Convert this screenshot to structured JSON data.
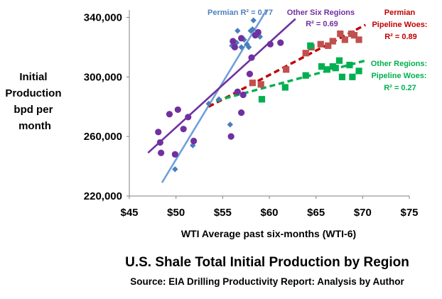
{
  "chart_data": {
    "type": "scatter",
    "title": "U.S. Shale Total Initial Production by Region",
    "subtitle": "Source: EIA Drilling Productivity Report: Analysis by Author",
    "xlabel": "WTI Average past six-months (WTI-6)",
    "ylabel_lines": [
      "Initial",
      "Production",
      "bpd per",
      "month"
    ],
    "xlim": [
      45,
      75
    ],
    "ylim": [
      220000,
      345000
    ],
    "x_ticks": [
      45,
      50,
      55,
      60,
      65,
      70,
      75
    ],
    "x_tick_labels": [
      "$45",
      "$50",
      "$55",
      "$60",
      "$65",
      "$70",
      "$75"
    ],
    "y_ticks": [
      220000,
      260000,
      300000,
      340000
    ],
    "y_tick_labels": [
      "220,000",
      "260,000",
      "300,000",
      "340,000"
    ],
    "grid": false,
    "series": [
      {
        "name": "Permian",
        "marker": "diamond",
        "color": "#4a7ebb",
        "points": [
          [
            49.9,
            238000
          ],
          [
            51.8,
            254000
          ],
          [
            53.5,
            282000
          ],
          [
            54.6,
            285000
          ],
          [
            55.8,
            268000
          ],
          [
            56.0,
            321000
          ],
          [
            56.5,
            323000
          ],
          [
            56.6,
            331000
          ],
          [
            57.0,
            320000
          ],
          [
            57.3,
            325000
          ],
          [
            57.6,
            322000
          ],
          [
            57.8,
            320000
          ],
          [
            58.0,
            331000
          ],
          [
            58.2,
            332000
          ],
          [
            58.3,
            338000
          ],
          [
            58.7,
            329000
          ],
          [
            59.0,
            327000
          ]
        ]
      },
      {
        "name": "Other Six Regions",
        "marker": "circle",
        "color": "#7030a0",
        "points": [
          [
            48.1,
            263000
          ],
          [
            48.3,
            256000
          ],
          [
            48.4,
            249000
          ],
          [
            49.3,
            275000
          ],
          [
            49.9,
            248000
          ],
          [
            50.2,
            278000
          ],
          [
            50.8,
            265000
          ],
          [
            51.3,
            273000
          ],
          [
            51.9,
            257000
          ],
          [
            55.9,
            260000
          ],
          [
            56.1,
            324000
          ],
          [
            56.3,
            320000
          ],
          [
            56.6,
            290000
          ],
          [
            57.0,
            276000
          ],
          [
            57.0,
            326000
          ],
          [
            57.2,
            288000
          ],
          [
            57.9,
            302000
          ],
          [
            58.1,
            313000
          ],
          [
            58.5,
            328000
          ],
          [
            58.8,
            330000
          ],
          [
            60.1,
            322000
          ],
          [
            61.2,
            323000
          ]
        ]
      },
      {
        "name": "Permian Pipeline Woes",
        "marker": "square",
        "color": "#c0504d",
        "points": [
          [
            58.2,
            296000
          ],
          [
            59.1,
            295000
          ],
          [
            61.8,
            305000
          ],
          [
            63.9,
            316000
          ],
          [
            64.5,
            320000
          ],
          [
            65.5,
            322000
          ],
          [
            66.3,
            321000
          ],
          [
            66.8,
            324000
          ],
          [
            67.6,
            329000
          ],
          [
            68.1,
            325000
          ],
          [
            68.8,
            329000
          ],
          [
            69.1,
            328000
          ],
          [
            69.6,
            325000
          ]
        ]
      },
      {
        "name": "Other Regions: Pipeline Woes",
        "marker": "square",
        "color": "#00b050",
        "points": [
          [
            59.2,
            285000
          ],
          [
            61.7,
            293000
          ],
          [
            63.9,
            301000
          ],
          [
            64.4,
            321000
          ],
          [
            65.6,
            307000
          ],
          [
            66.2,
            305000
          ],
          [
            66.8,
            307000
          ],
          [
            67.1,
            306000
          ],
          [
            67.5,
            311000
          ],
          [
            67.8,
            300000
          ],
          [
            68.6,
            308000
          ],
          [
            68.9,
            300000
          ],
          [
            69.6,
            304000
          ]
        ]
      }
    ],
    "trendlines": [
      {
        "series": "Permian",
        "style": "solid",
        "color": "#6fa0db",
        "x": [
          48.5,
          60.0
        ],
        "y": [
          229000,
          348000
        ]
      },
      {
        "series": "Other Six Regions",
        "style": "solid",
        "color": "#7030a0",
        "x": [
          47.0,
          62.8
        ],
        "y": [
          249000,
          339000
        ]
      },
      {
        "series": "Permian Pipeline Woes",
        "style": "dashed",
        "color": "#c00000",
        "x": [
          53.5,
          70.3
        ],
        "y": [
          280000,
          335000
        ]
      },
      {
        "series": "Other Regions: Pipeline Woes",
        "style": "dashed",
        "color": "#00b050",
        "x": [
          54.3,
          70.3
        ],
        "y": [
          284000,
          311000
        ]
      }
    ],
    "annotations": [
      {
        "lines": [
          "Permian R² = 0.77"
        ],
        "color": "#4f81bd"
      },
      {
        "lines": [
          "Other Six Regions",
          "R² = 0.69"
        ],
        "color": "#7030a0"
      },
      {
        "lines": [
          "Permian",
          "Pipeline Woes:",
          "R² = 0.89"
        ],
        "color": "#c00000"
      },
      {
        "lines": [
          "Other Regions:",
          "Pipeline Woes:",
          "R² = 0.27"
        ],
        "color": "#00b050"
      }
    ]
  }
}
